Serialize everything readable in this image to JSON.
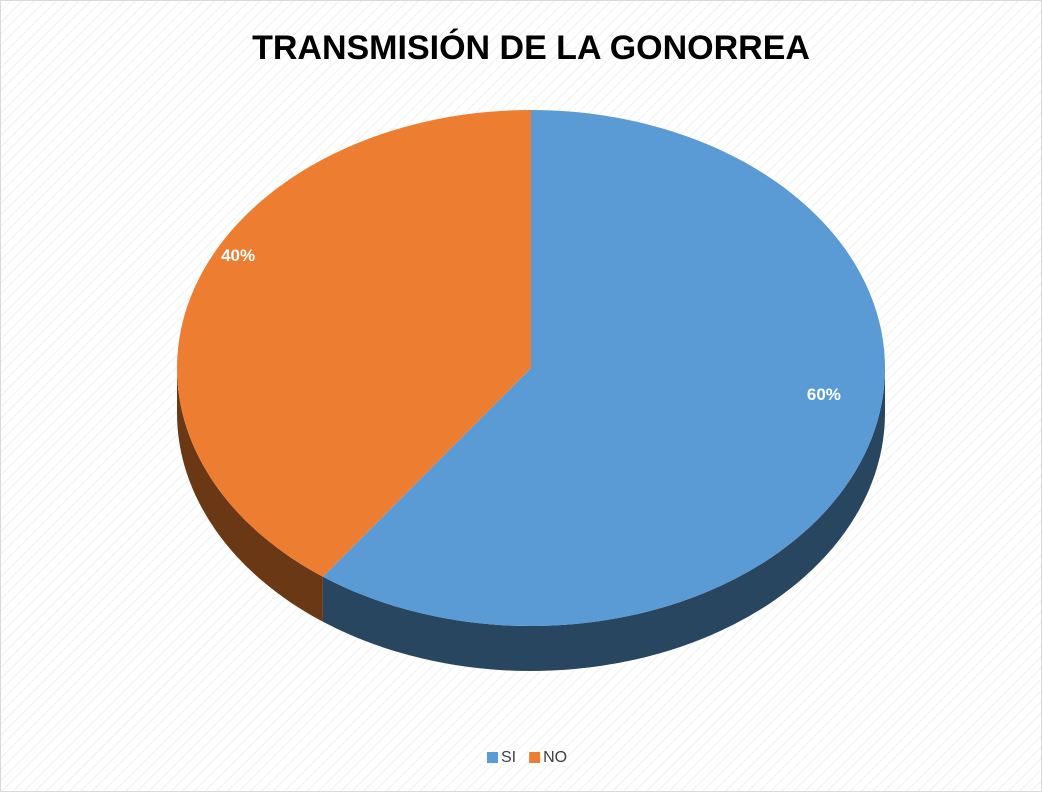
{
  "chart_data": {
    "type": "pie",
    "title": "TRANSMISIÓN DE LA GONORREA",
    "categories": [
      "SI",
      "NO"
    ],
    "values": [
      60,
      40
    ],
    "value_labels": [
      "60%",
      "40%"
    ],
    "colors": [
      "#5b9bd5",
      "#ed7d31"
    ],
    "legend": "bottom"
  }
}
